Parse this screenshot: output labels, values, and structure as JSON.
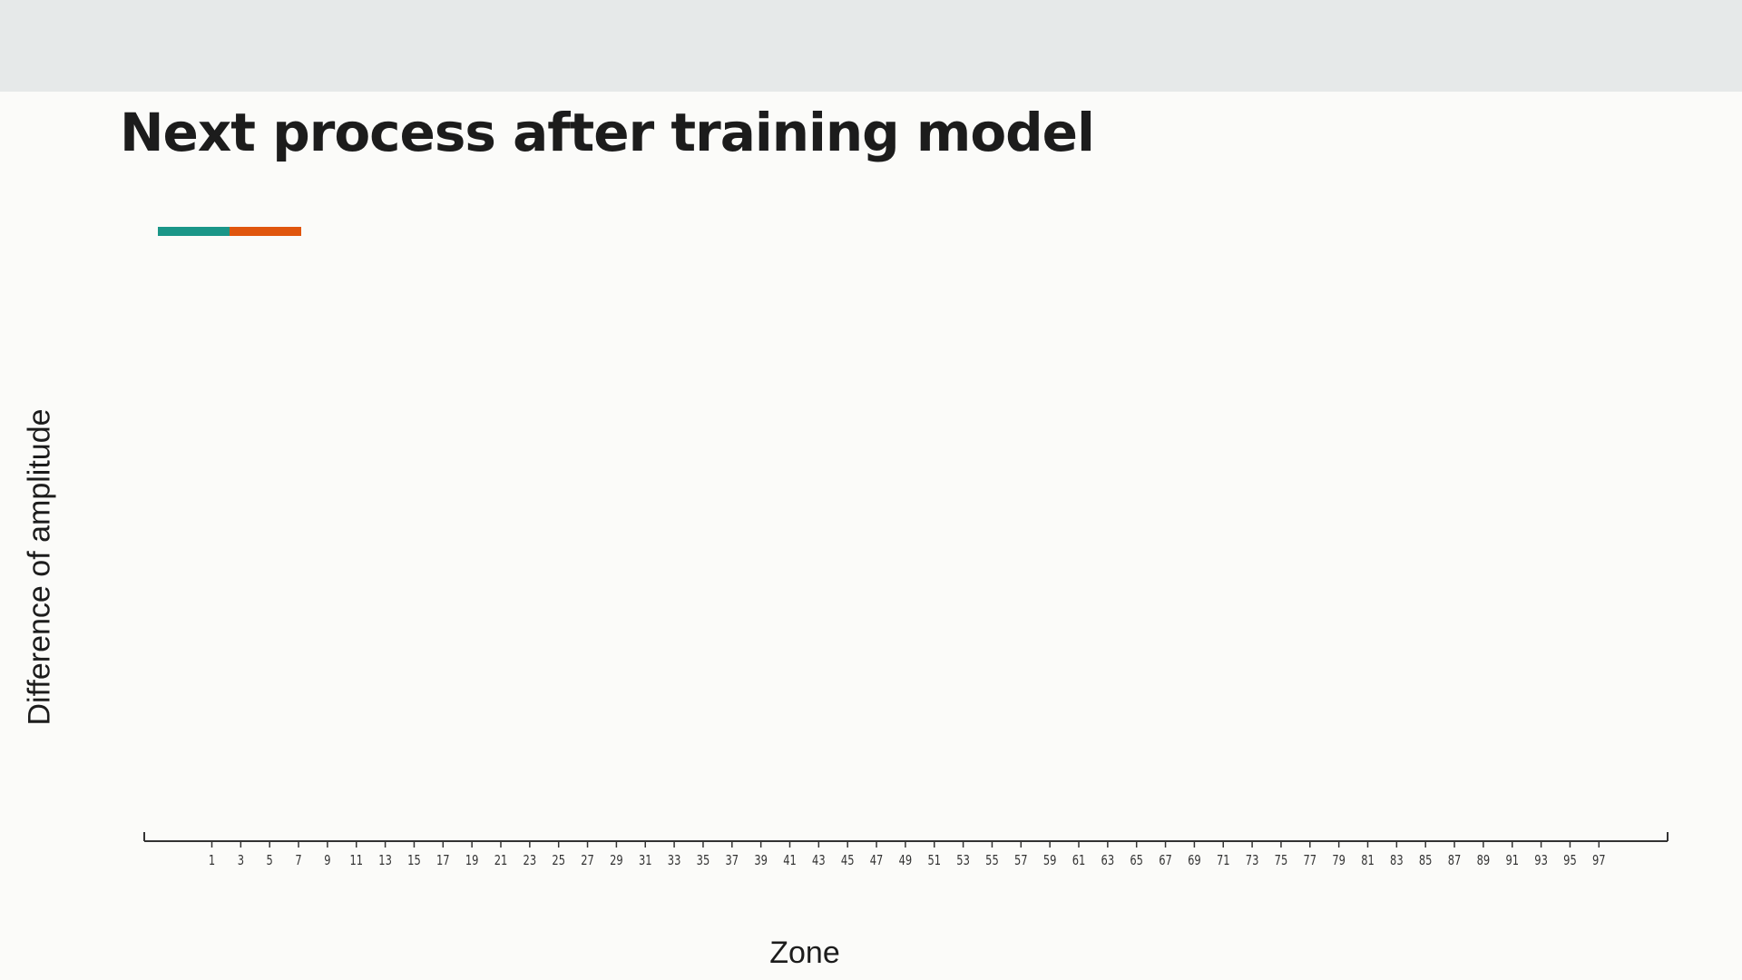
{
  "slide": {
    "title": "Next process after training model",
    "accent_colors": [
      "#1a9688",
      "#e0560e"
    ]
  },
  "chart_data": {
    "type": "bar",
    "title": "",
    "xlabel": "Zone",
    "ylabel": "Difference of amplitude",
    "categories": [
      "1",
      "3",
      "5",
      "7",
      "9",
      "11",
      "13",
      "15",
      "17",
      "19",
      "21",
      "23",
      "25",
      "27",
      "29",
      "31",
      "33",
      "35",
      "37",
      "39",
      "41",
      "43",
      "45",
      "47",
      "49",
      "51",
      "53",
      "55",
      "57",
      "59",
      "61",
      "63",
      "65",
      "67",
      "69",
      "71",
      "73",
      "75",
      "77",
      "79",
      "81",
      "83",
      "85",
      "87",
      "89",
      "91",
      "93",
      "95",
      "97"
    ],
    "series": [],
    "grid": false,
    "legend": "none",
    "colors": {
      "axis": "#333333",
      "tick_text": "#333333"
    }
  }
}
